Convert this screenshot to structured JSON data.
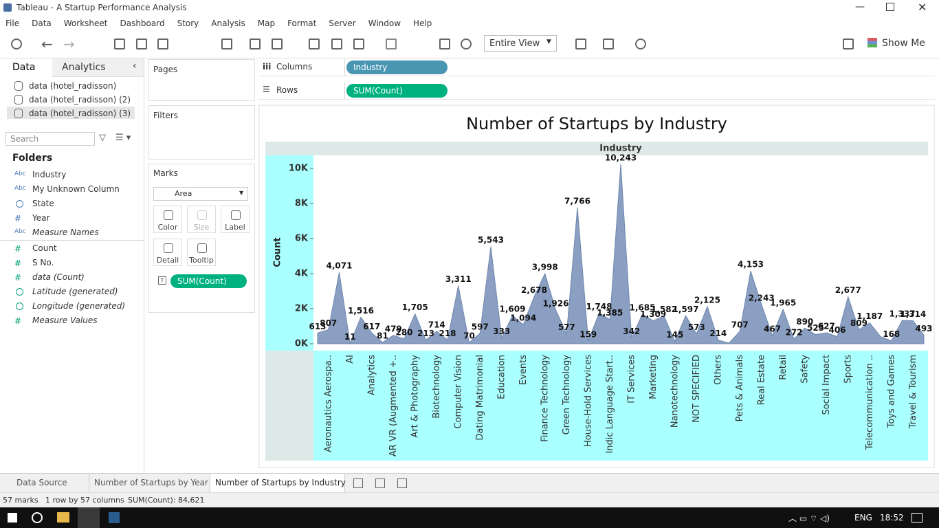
{
  "window_title": "Tableau - A Startup Performance Analysis",
  "menu": [
    "File",
    "Data",
    "Worksheet",
    "Dashboard",
    "Story",
    "Analysis",
    "Map",
    "Format",
    "Server",
    "Window",
    "Help"
  ],
  "toolbar": {
    "view_select": "Entire View",
    "show_me": "Show Me"
  },
  "data_pane": {
    "tabs": [
      "Data",
      "Analytics"
    ],
    "sources": [
      "data (hotel_radisson)",
      "data (hotel_radisson) (2)",
      "data (hotel_radisson) (3)"
    ],
    "search_placeholder": "Search",
    "folders_title": "Folders",
    "fields": [
      {
        "icon": "Abc",
        "name": "Industry",
        "italic": false
      },
      {
        "icon": "Abc",
        "name": "My Unknown Column",
        "italic": false
      },
      {
        "icon": "geo",
        "name": "State",
        "italic": false
      },
      {
        "icon": "#",
        "name": "Year",
        "italic": false
      },
      {
        "icon": "Abc",
        "name": "Measure Names",
        "italic": true
      },
      {
        "icon": "#",
        "name": "Count",
        "italic": false
      },
      {
        "icon": "#",
        "name": "S No.",
        "italic": false
      },
      {
        "icon": "#",
        "name": "data (Count)",
        "italic": true
      },
      {
        "icon": "geo",
        "name": "Latitude (generated)",
        "italic": true
      },
      {
        "icon": "geo",
        "name": "Longitude (generated)",
        "italic": true
      },
      {
        "icon": "#",
        "name": "Measure Values",
        "italic": true
      }
    ]
  },
  "cards": {
    "pages": "Pages",
    "filters": "Filters",
    "marks": {
      "title": "Marks",
      "type": "Area",
      "buttons": [
        "Color",
        "Size",
        "Label",
        "Detail",
        "Tooltip"
      ],
      "pill": "SUM(Count)"
    }
  },
  "shelves": {
    "columns": {
      "label": "Columns",
      "pill": "Industry"
    },
    "rows": {
      "label": "Rows",
      "pill": "SUM(Count)"
    }
  },
  "chart_data": {
    "type": "area",
    "title": "Number of Startups by Industry",
    "header": "Industry",
    "y_label": "Count",
    "color": "#8a9fc2",
    "categories": [
      null,
      "Aeronautics Aerospa..",
      null,
      "AI",
      null,
      "Analytics",
      null,
      "AR VR (Augmented +..",
      null,
      "Art & Photography",
      null,
      "Biotechnology",
      null,
      "Computer Vision",
      null,
      "Dating Matrimonial",
      null,
      "Education",
      null,
      "Events",
      null,
      "Finance Technology",
      null,
      "Green Technology",
      null,
      "House-Hold Services",
      null,
      "Indic Language Start..",
      null,
      "IT Services",
      null,
      "Marketing",
      null,
      "Nanotechnology",
      null,
      "NOT SPECIFIED",
      null,
      "Others",
      null,
      "Pets & Animals",
      null,
      "Real Estate",
      null,
      "Retail",
      null,
      "Safety",
      null,
      "Social Impact",
      null,
      "Sports",
      null,
      "Telecommunication ..",
      null,
      "Toys and Games",
      null,
      "Travel & Tourism",
      null
    ],
    "values": [
      613,
      807,
      4071,
      11,
      1516,
      617,
      81,
      479,
      280,
      1705,
      213,
      714,
      218,
      3311,
      70,
      597,
      5543,
      333,
      1609,
      1094,
      2678,
      3998,
      1926,
      577,
      7766,
      159,
      1748,
      1385,
      10243,
      342,
      1685,
      1309,
      1582,
      145,
      1597,
      573,
      2125,
      214,
      40,
      707,
      4153,
      2243,
      467,
      1965,
      272,
      890,
      525,
      627,
      406,
      2677,
      809,
      1187,
      407,
      168,
      1337,
      1314,
      493
    ],
    "value_labels": [
      "613",
      "807",
      "4,071",
      "11",
      "1,516",
      "617",
      "81",
      "479",
      "280",
      "1,705",
      "213",
      "714",
      "218",
      "3,311",
      "70",
      "597",
      "5,543",
      "333",
      "1,609",
      "1,094",
      "2,678",
      "3,998",
      "1,926",
      "577",
      "7,766",
      "159",
      "1,748",
      "1,385",
      "10,243",
      "342",
      "1,685",
      "1,309",
      "1,582",
      "145",
      "1,597",
      "573",
      "2,125",
      "214",
      null,
      "707",
      "4,153",
      "2,243",
      "467",
      "1,965",
      "272",
      "890",
      "525",
      "627",
      "406",
      "2,677",
      "809",
      "1,187",
      null,
      "168",
      "1,337",
      "1,314",
      "493"
    ],
    "ylim": [
      -392,
      10745
    ],
    "yticks": [
      {
        "value": 0,
        "label": "0K"
      },
      {
        "value": 2000,
        "label": "2K"
      },
      {
        "value": 4000,
        "label": "4K"
      },
      {
        "value": 6000,
        "label": "6K"
      },
      {
        "value": 8000,
        "label": "8K"
      },
      {
        "value": 10000,
        "label": "10K"
      }
    ]
  },
  "sheet_tabs": [
    "Data Source",
    "Number of Startups by Year",
    "Number of Startups by Industry"
  ],
  "status": [
    "57 marks",
    "1 row by 57 columns",
    "SUM(Count): 84,621"
  ],
  "taskbar": {
    "lang": "ENG",
    "time": "18:52"
  }
}
